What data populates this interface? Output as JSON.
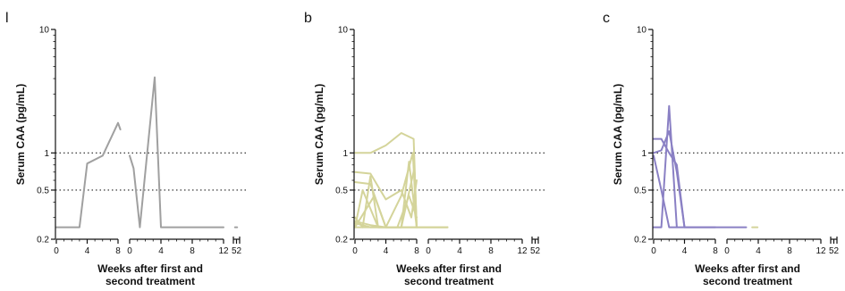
{
  "chart_data": [
    {
      "type": "line",
      "panel_label": "l",
      "xlabel": [
        "Weeks after first and",
        "second treatment"
      ],
      "ylabel": "Serum CAA (pg/mL)",
      "y_scale": "log",
      "ylim": [
        0.2,
        10
      ],
      "y_ticks": [
        {
          "value": 0.2,
          "label": "0.2"
        },
        {
          "value": 0.5,
          "label": "0.5"
        },
        {
          "value": 1,
          "label": "1"
        },
        {
          "value": 10,
          "label": "10"
        }
      ],
      "x_segments": [
        {
          "range": [
            0,
            8
          ],
          "ticks": [
            {
              "value": 0,
              "label": "0"
            },
            {
              "value": 4,
              "label": "4"
            },
            {
              "value": 8,
              "label": "8"
            }
          ]
        },
        {
          "range": [
            0,
            12
          ],
          "ticks": [
            {
              "value": 0,
              "label": "0"
            },
            {
              "value": 4,
              "label": "4"
            },
            {
              "value": 8,
              "label": "8"
            },
            {
              "value": 12,
              "label": "12"
            }
          ]
        },
        {
          "range": [
            51,
            53
          ],
          "ticks": [
            {
              "value": 52,
              "label": "52"
            }
          ]
        }
      ],
      "reference_lines": [
        1,
        0.5
      ],
      "color": "#a0a0a0",
      "series": [
        {
          "segments": [
            [
              [
                0,
                0.25
              ],
              [
                3,
                0.25
              ],
              [
                4,
                0.82
              ],
              [
                6,
                0.95
              ],
              [
                8,
                1.75
              ],
              [
                8.3,
                1.55
              ]
            ],
            [
              [
                0,
                0.95
              ],
              [
                0.5,
                0.75
              ],
              [
                1.3,
                0.25
              ],
              [
                3.2,
                4.1
              ],
              [
                4,
                0.25
              ],
              [
                12,
                0.25
              ]
            ],
            [
              [
                51.5,
                0.25
              ],
              [
                52.2,
                0.25
              ]
            ]
          ]
        }
      ]
    },
    {
      "type": "line",
      "panel_label": "b",
      "xlabel": [
        "Weeks after first and",
        "second treatment"
      ],
      "ylabel": "Serum CAA (pg/mL)",
      "y_scale": "log",
      "ylim": [
        0.2,
        10
      ],
      "y_ticks": [
        {
          "value": 0.2,
          "label": "0.2"
        },
        {
          "value": 0.5,
          "label": "0.5"
        },
        {
          "value": 1,
          "label": "1"
        },
        {
          "value": 10,
          "label": "10"
        }
      ],
      "x_segments": [
        {
          "range": [
            0,
            8
          ],
          "ticks": [
            {
              "value": 0,
              "label": "0"
            },
            {
              "value": 4,
              "label": "4"
            },
            {
              "value": 8,
              "label": "8"
            }
          ]
        },
        {
          "range": [
            0,
            12
          ],
          "ticks": [
            {
              "value": 0,
              "label": "0"
            },
            {
              "value": 4,
              "label": "4"
            },
            {
              "value": 8,
              "label": "8"
            },
            {
              "value": 12,
              "label": "12"
            }
          ]
        },
        {
          "range": [
            51,
            53
          ],
          "ticks": [
            {
              "value": 52,
              "label": "52"
            }
          ]
        }
      ],
      "reference_lines": [
        1,
        0.5
      ],
      "color": "#d4d49a",
      "series": [
        {
          "segments": [
            [
              [
                0,
                1.0
              ],
              [
                2,
                1.0
              ],
              [
                4,
                1.15
              ],
              [
                6,
                1.45
              ],
              [
                7.6,
                1.3
              ],
              [
                8,
                0.25
              ]
            ]
          ]
        },
        {
          "segments": [
            [
              [
                0,
                0.7
              ],
              [
                2,
                0.68
              ],
              [
                4,
                0.42
              ],
              [
                6,
                0.5
              ],
              [
                7.3,
                0.3
              ],
              [
                8,
                0.6
              ]
            ]
          ]
        },
        {
          "segments": [
            [
              [
                0,
                0.58
              ],
              [
                2,
                0.56
              ],
              [
                4,
                0.25
              ],
              [
                6,
                0.25
              ],
              [
                7,
                0.85
              ],
              [
                8,
                0.25
              ]
            ]
          ]
        },
        {
          "segments": [
            [
              [
                0,
                0.28
              ],
              [
                2,
                0.26
              ],
              [
                4,
                0.25
              ],
              [
                6,
                0.45
              ],
              [
                7.5,
                1.0
              ],
              [
                8,
                0.25
              ]
            ]
          ]
        },
        {
          "segments": [
            [
              [
                0,
                0.27
              ],
              [
                2,
                0.25
              ],
              [
                4,
                0.25
              ],
              [
                5.5,
                0.25
              ],
              [
                7,
                0.45
              ],
              [
                8,
                0.3
              ]
            ]
          ]
        },
        {
          "segments": [
            [
              [
                0,
                0.25
              ],
              [
                2,
                0.25
              ],
              [
                4,
                0.25
              ],
              [
                6,
                0.25
              ],
              [
                7.7,
                0.75
              ],
              [
                8,
                0.25
              ]
            ]
          ]
        },
        {
          "segments": [
            [
              [
                0,
                0.25
              ],
              [
                1,
                0.5
              ],
              [
                3,
                0.25
              ],
              [
                12,
                0.25
              ]
            ]
          ]
        },
        {
          "segments": [
            [
              [
                0,
                0.3
              ],
              [
                1,
                0.25
              ],
              [
                2,
                0.65
              ],
              [
                3,
                0.25
              ],
              [
                12,
                0.25
              ]
            ]
          ]
        },
        {
          "segments": [
            [
              [
                0,
                0.25
              ],
              [
                2.5,
                0.45
              ],
              [
                4,
                0.25
              ],
              [
                12,
                0.25
              ]
            ]
          ]
        },
        {
          "segments": [
            [
              [
                51.5,
                0.25
              ],
              [
                52.2,
                0.25
              ]
            ]
          ]
        }
      ]
    },
    {
      "type": "line",
      "panel_label": "c",
      "xlabel": [
        "Weeks after first and",
        "second treatment"
      ],
      "ylabel": "Serum CAA (pg/mL)",
      "y_scale": "log",
      "ylim": [
        0.2,
        10
      ],
      "y_ticks": [
        {
          "value": 0.2,
          "label": "0.2"
        },
        {
          "value": 0.5,
          "label": "0.5"
        },
        {
          "value": 1,
          "label": "1"
        },
        {
          "value": 10,
          "label": "10"
        }
      ],
      "x_segments": [
        {
          "range": [
            0,
            8
          ],
          "ticks": [
            {
              "value": 0,
              "label": "0"
            },
            {
              "value": 4,
              "label": "4"
            },
            {
              "value": 8,
              "label": "8"
            }
          ]
        },
        {
          "range": [
            0,
            12
          ],
          "ticks": [
            {
              "value": 0,
              "label": "0"
            },
            {
              "value": 4,
              "label": "4"
            },
            {
              "value": 8,
              "label": "8"
            },
            {
              "value": 12,
              "label": "12"
            }
          ]
        },
        {
          "range": [
            51,
            53
          ],
          "ticks": [
            {
              "value": 52,
              "label": "52"
            }
          ]
        }
      ],
      "reference_lines": [
        1,
        0.5
      ],
      "color": "#8a80c4",
      "series": [
        {
          "segments": [
            [
              [
                0,
                1.3
              ],
              [
                1,
                1.3
              ],
              [
                2,
                1.0
              ],
              [
                3,
                0.8
              ],
              [
                4,
                0.25
              ],
              [
                8,
                0.25
              ]
            ]
          ]
        },
        {
          "segments": [
            [
              [
                0,
                1.0
              ],
              [
                1,
                1.05
              ],
              [
                2,
                1.5
              ],
              [
                3,
                0.7
              ],
              [
                4,
                0.25
              ]
            ]
          ]
        },
        {
          "segments": [
            [
              [
                0,
                0.95
              ],
              [
                1,
                0.5
              ],
              [
                2,
                0.25
              ],
              [
                3,
                0.25
              ]
            ]
          ]
        },
        {
          "segments": [
            [
              [
                0,
                0.25
              ],
              [
                1,
                0.25
              ],
              [
                2,
                2.4
              ],
              [
                3,
                0.25
              ],
              [
                12,
                0.25
              ]
            ]
          ]
        },
        {
          "segments": [
            [
              [
                51.5,
                0.25
              ],
              [
                52.2,
                0.25
              ]
            ]
          ]
        }
      ]
    }
  ]
}
